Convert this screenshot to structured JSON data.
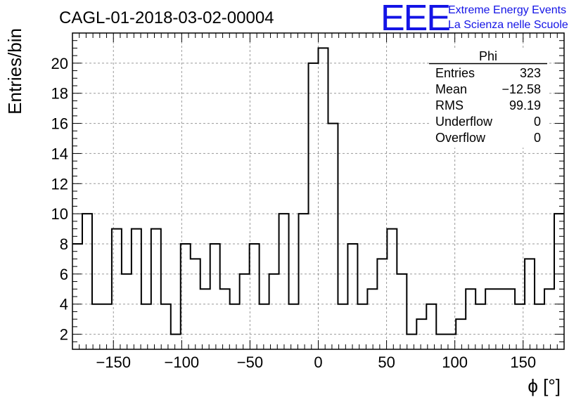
{
  "header": {
    "title": "CAGL-01-2018-03-02-00004",
    "logo_text": "EEE",
    "logo_line1": "Extreme Energy Events",
    "logo_line2": "La Scienza nelle Scuole"
  },
  "stats_box": {
    "name": "Phi",
    "rows": [
      {
        "label": "Entries",
        "value": "323"
      },
      {
        "label": "Mean",
        "value": "−12.58"
      },
      {
        "label": "RMS",
        "value": "99.19"
      },
      {
        "label": "Underflow",
        "value": "0"
      },
      {
        "label": "Overflow",
        "value": "0"
      }
    ]
  },
  "colors": {
    "line": "#000000",
    "grid": "#9a9a9a",
    "logo": "#1414e6"
  },
  "chart_data": {
    "type": "histogram",
    "xlabel": "ϕ [°]",
    "ylabel": "Entries/bin",
    "xlim": [
      -180,
      180
    ],
    "ylim": [
      1,
      22
    ],
    "grid": true,
    "x_ticks": [
      -150,
      -100,
      -50,
      0,
      50,
      100,
      150
    ],
    "x_tick_labels": [
      "−150",
      "−100",
      "−50",
      "0",
      "50",
      "100",
      "150"
    ],
    "y_ticks": [
      2,
      4,
      6,
      8,
      10,
      12,
      14,
      16,
      18,
      20
    ],
    "y_tick_labels": [
      "2",
      "4",
      "6",
      "8",
      "10",
      "12",
      "14",
      "16",
      "18",
      "20"
    ],
    "bin_width": 7.2,
    "bin_start": -180,
    "values": [
      8,
      10,
      4,
      4,
      9,
      6,
      9,
      4,
      9,
      4,
      2,
      8,
      7,
      5,
      8,
      5,
      4,
      6,
      8,
      4,
      6,
      10,
      4,
      10,
      20,
      21,
      16,
      4,
      8,
      4,
      5,
      7,
      9,
      6,
      2,
      3,
      4,
      2,
      2,
      3,
      5,
      4,
      5,
      5,
      5,
      4,
      7,
      4,
      5,
      10
    ]
  }
}
